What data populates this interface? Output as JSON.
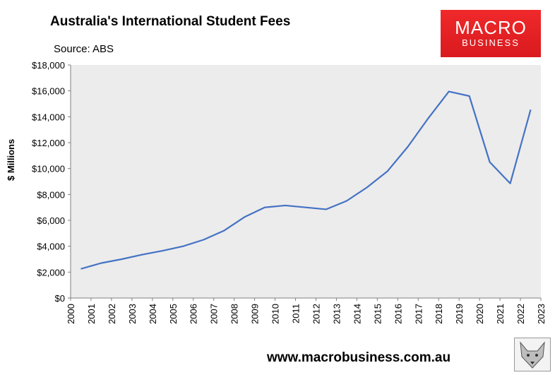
{
  "header": {
    "title": "Australia's International Student Fees",
    "source": "Source: ABS"
  },
  "logo": {
    "line1": "MACRO",
    "line2": "BUSINESS"
  },
  "footer": {
    "url": "www.macrobusiness.com.au"
  },
  "colors": {
    "line": "#4472c4",
    "plot_bg": "#ececec",
    "logo_bg": "#e22226"
  },
  "chart_data": {
    "type": "line",
    "title": "Australia's International Student Fees",
    "ylabel": "$ Millions",
    "xlabel": "",
    "ylim": [
      0,
      18000
    ],
    "xlim": [
      2000,
      2023
    ],
    "ytick_labels": [
      "$0",
      "$2,000",
      "$4,000",
      "$6,000",
      "$8,000",
      "$10,000",
      "$12,000",
      "$14,000",
      "$16,000",
      "$18,000"
    ],
    "xtick_labels": [
      "2000",
      "2001",
      "2002",
      "2003",
      "2004",
      "2005",
      "2006",
      "2007",
      "2008",
      "2009",
      "2010",
      "2011",
      "2012",
      "2013",
      "2014",
      "2015",
      "2016",
      "2017",
      "2018",
      "2019",
      "2020",
      "2021",
      "2022",
      "2023"
    ],
    "grid": false,
    "series": [
      {
        "x": [
          2000.5,
          2001.5,
          2002.5,
          2003.5,
          2004.5,
          2005.5,
          2006.5,
          2007.5,
          2008.5,
          2009.5,
          2010.5,
          2011.5,
          2012.5,
          2013.5,
          2014.5,
          2015.5,
          2016.5,
          2017.5,
          2018.5,
          2019.5,
          2020.5,
          2021.5,
          2022.5
        ],
        "values": [
          2250,
          2700,
          3000,
          3350,
          3650,
          4000,
          4500,
          5200,
          6250,
          7000,
          7150,
          7000,
          6850,
          7500,
          8550,
          9800,
          11700,
          13900,
          15950,
          15600,
          10500,
          8850,
          14550
        ]
      }
    ]
  }
}
